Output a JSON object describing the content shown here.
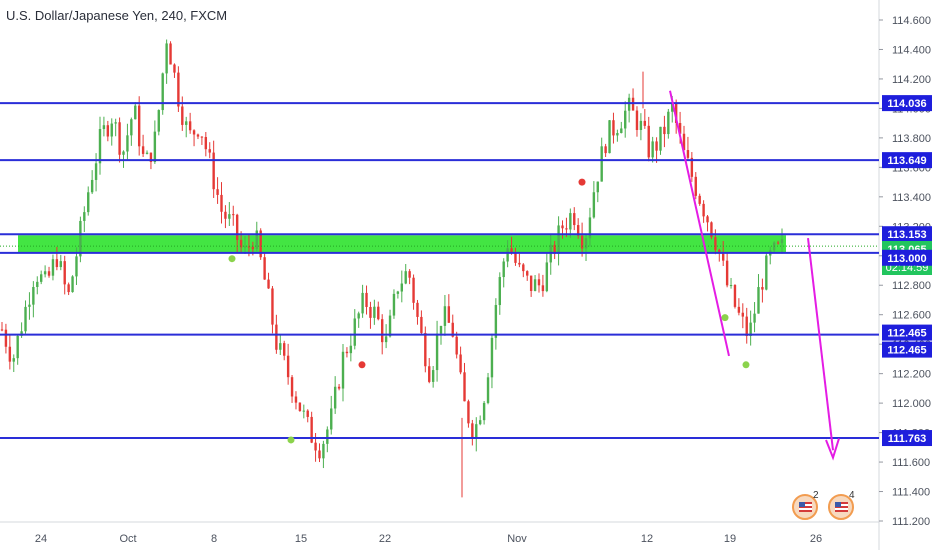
{
  "header": {
    "title": "U.S. Dollar/Japanese Yen, 240, FXCM"
  },
  "colors": {
    "level_line": "#2a2ed8",
    "zone": "#22e022",
    "arrow": "#e41ce4",
    "bull": "#4caf50",
    "bear": "#e53935",
    "dot_green": "#8bd34c",
    "dot_red": "#e53935",
    "axis_text": "#4c525e",
    "label_bg": "#1e1edc",
    "price_label_bg": "#22c55e",
    "price_line": "#22a822"
  },
  "events": [
    {
      "name": "us-event-icon",
      "count": "2"
    },
    {
      "name": "us-event-icon",
      "count": "4"
    }
  ],
  "chart_data": {
    "type": "candlestick",
    "title": "U.S. Dollar/Japanese Yen, 240, FXCM",
    "symbol": "USDJPY",
    "interval": "240",
    "source": "FXCM",
    "ylim": [
      111.2,
      114.7
    ],
    "y_ticks": [
      "114.600",
      "114.400",
      "114.200",
      "114.000",
      "113.800",
      "113.600",
      "113.400",
      "113.200",
      "113.000",
      "112.800",
      "112.600",
      "112.400",
      "112.200",
      "112.000",
      "111.800",
      "111.600",
      "111.400",
      "111.200"
    ],
    "x_ticks": [
      "24",
      "Oct",
      "8",
      "15",
      "22",
      "Nov",
      "12",
      "19",
      "26"
    ],
    "horizontal_levels": [
      {
        "price": 114.036,
        "label": "114.036"
      },
      {
        "price": 113.649,
        "label": "113.649"
      },
      {
        "price": 113.153,
        "label": "113.153"
      },
      {
        "price": 113.0,
        "label": "113.000"
      },
      {
        "price": 112.465,
        "label": "112.465"
      },
      {
        "price": 111.763,
        "label": "111.763"
      }
    ],
    "extra_level_labels": [
      "112.465"
    ],
    "zone": {
      "from": 113.03,
      "to": 113.15
    },
    "current_price": {
      "price": "113.065",
      "countdown": "02:14:59"
    },
    "trend_lines": [
      {
        "from": [
          "Nov 13",
          114.12
        ],
        "to": [
          "Nov 18",
          112.3
        ]
      },
      {
        "from": [
          "Nov 23",
          113.12
        ],
        "to": [
          "Nov 26",
          111.63
        ],
        "arrow": true
      }
    ],
    "close_path": [
      112.5,
      112.3,
      112.6,
      112.9,
      112.8,
      113.0,
      112.7,
      113.1,
      113.5,
      113.8,
      113.95,
      113.7,
      114.0,
      113.6,
      113.8,
      114.5,
      114.1,
      113.8,
      113.9,
      113.6,
      113.3,
      113.2,
      113.0,
      113.15,
      112.8,
      112.4,
      112.2,
      112.0,
      111.8,
      111.7,
      111.9,
      112.3,
      112.5,
      112.7,
      112.6,
      112.4,
      112.8,
      112.9,
      112.5,
      112.2,
      112.6,
      112.5,
      112.0,
      111.8,
      112.1,
      112.7,
      113.1,
      112.9,
      112.8,
      112.8,
      113.0,
      113.2,
      113.3,
      113.1,
      113.5,
      113.8,
      113.9,
      114.0,
      113.9,
      113.7,
      113.8,
      114.0,
      113.7,
      113.5,
      113.3,
      113.1,
      112.8,
      112.6,
      112.45,
      112.8,
      113.0,
      113.05
    ],
    "markers": [
      {
        "type": "dot_green",
        "x": "Oct 9",
        "y": 112.98
      },
      {
        "type": "dot_green",
        "x": "Oct 15",
        "y": 111.75
      },
      {
        "type": "dot_red",
        "x": "Oct 18",
        "y": 112.26
      },
      {
        "type": "dot_red",
        "x": "Nov 6",
        "y": 113.5
      },
      {
        "type": "dot_green",
        "x": "Nov 18",
        "y": 112.58
      },
      {
        "type": "dot_green",
        "x": "Nov 21",
        "y": 112.26
      }
    ]
  }
}
